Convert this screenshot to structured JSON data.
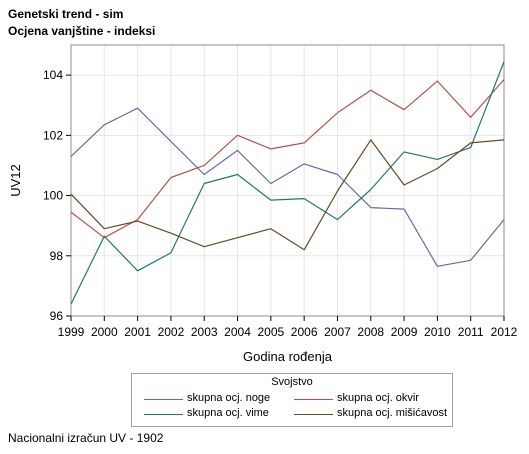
{
  "title": "Genetski trend - sim",
  "subtitle": "Ocjena vanjštine - indeksi",
  "footnote": "Nacionalni izračun UV - 1902",
  "chart_data": {
    "type": "line",
    "x": [
      1999,
      2000,
      2001,
      2002,
      2003,
      2004,
      2005,
      2006,
      2007,
      2008,
      2009,
      2010,
      2011,
      2012
    ],
    "xlabel": "Godina rođenja",
    "ylabel": "UV12",
    "xlim": [
      1999,
      2012
    ],
    "ylim": [
      96,
      105
    ],
    "yticks": [
      96,
      98,
      100,
      102,
      104
    ],
    "grid": true,
    "legend_title": "Svojstvo",
    "legend_position": "bottom",
    "series": [
      {
        "name": "skupna ocj. noge",
        "color": "#5f6ea6",
        "values": [
          101.3,
          102.35,
          102.9,
          101.8,
          100.7,
          101.5,
          100.4,
          101.05,
          100.7,
          99.6,
          99.55,
          97.65,
          97.85,
          99.2
        ]
      },
      {
        "name": "skupna ocj. okvir",
        "color": "#b5524a",
        "values": [
          99.45,
          98.6,
          99.2,
          100.6,
          101.0,
          102.0,
          101.55,
          101.75,
          102.75,
          103.5,
          102.85,
          103.8,
          102.6,
          103.85
        ]
      },
      {
        "name": "skupna ocj. vime",
        "color": "#1f7a6e",
        "values": [
          96.4,
          98.65,
          97.5,
          98.1,
          100.4,
          100.7,
          99.85,
          99.9,
          99.2,
          100.2,
          101.45,
          101.2,
          101.6,
          104.45
        ]
      },
      {
        "name": "skupna ocj. mišićavost",
        "color": "#6b4a1c",
        "values": [
          100.05,
          98.9,
          99.15,
          98.75,
          98.3,
          98.6,
          98.9,
          98.2,
          100.15,
          101.85,
          100.35,
          100.9,
          101.75,
          101.85
        ]
      }
    ]
  }
}
